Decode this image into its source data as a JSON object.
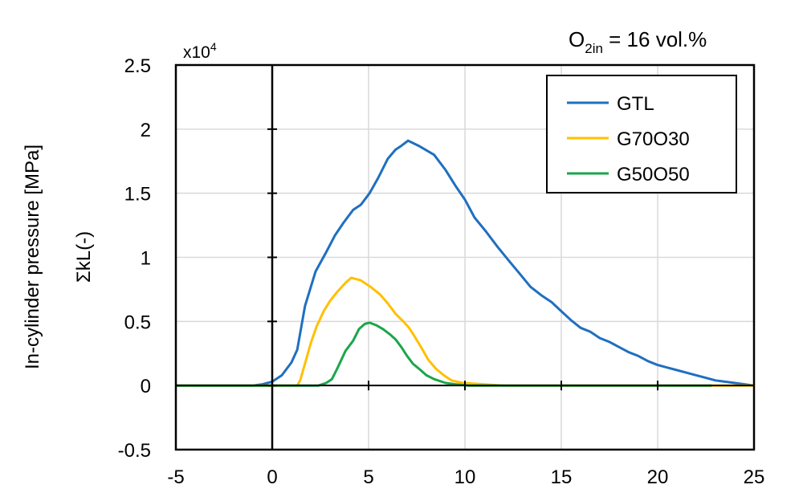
{
  "chart_data": {
    "type": "line",
    "title": "",
    "annotation": {
      "main": "O",
      "sub": "2in",
      "rest": " = 16 vol.%"
    },
    "multiplier_label": {
      "base": "x10",
      "exp": "4"
    },
    "ylabel_outer": "In-cylinder pressure [MPa]",
    "ylabel": "ΣkL(-)",
    "xlabel": "",
    "xlim": [
      -5,
      25
    ],
    "ylim": [
      -0.5,
      2.5
    ],
    "xticks": [
      "-5",
      "0",
      "5",
      "10",
      "15",
      "20",
      "25"
    ],
    "yticks": [
      "-0.5",
      "0",
      "0.5",
      "1",
      "1.5",
      "2",
      "2.5"
    ],
    "grid": true,
    "legend_position": "top-right",
    "series": [
      {
        "name": "GTL",
        "color": "#1f6fc0",
        "points": [
          [
            -5,
            0
          ],
          [
            -1,
            0
          ],
          [
            -0.5,
            0.01
          ],
          [
            0,
            0.03
          ],
          [
            0.5,
            0.08
          ],
          [
            1,
            0.18
          ],
          [
            1.3,
            0.28
          ],
          [
            1.7,
            0.62
          ],
          [
            2.25,
            0.89
          ],
          [
            2.8,
            1.04
          ],
          [
            3.25,
            1.17
          ],
          [
            3.7,
            1.27
          ],
          [
            4.2,
            1.37
          ],
          [
            4.6,
            1.41
          ],
          [
            5.05,
            1.5
          ],
          [
            5.5,
            1.62
          ],
          [
            6,
            1.77
          ],
          [
            6.4,
            1.84
          ],
          [
            6.7,
            1.87
          ],
          [
            7.05,
            1.91
          ],
          [
            7.6,
            1.87
          ],
          [
            8.4,
            1.8
          ],
          [
            9,
            1.68
          ],
          [
            9.5,
            1.56
          ],
          [
            10,
            1.45
          ],
          [
            10.5,
            1.31
          ],
          [
            11.1,
            1.2
          ],
          [
            11.7,
            1.08
          ],
          [
            12.3,
            0.97
          ],
          [
            12.8,
            0.88
          ],
          [
            13.4,
            0.77
          ],
          [
            14,
            0.7
          ],
          [
            14.5,
            0.65
          ],
          [
            15,
            0.58
          ],
          [
            15.5,
            0.51
          ],
          [
            16,
            0.45
          ],
          [
            16.5,
            0.42
          ],
          [
            17,
            0.37
          ],
          [
            17.5,
            0.34
          ],
          [
            18,
            0.3
          ],
          [
            18.5,
            0.26
          ],
          [
            19,
            0.23
          ],
          [
            19.5,
            0.19
          ],
          [
            20,
            0.16
          ],
          [
            20.5,
            0.14
          ],
          [
            21,
            0.12
          ],
          [
            21.5,
            0.1
          ],
          [
            22,
            0.08
          ],
          [
            22.5,
            0.06
          ],
          [
            23,
            0.04
          ],
          [
            23.5,
            0.03
          ],
          [
            24,
            0.02
          ],
          [
            24.5,
            0.01
          ],
          [
            25,
            0
          ]
        ]
      },
      {
        "name": "G70O30",
        "color": "#ffc000",
        "points": [
          [
            -5,
            0
          ],
          [
            1.3,
            0
          ],
          [
            1.45,
            0.04
          ],
          [
            1.7,
            0.17
          ],
          [
            2,
            0.33
          ],
          [
            2.3,
            0.46
          ],
          [
            2.67,
            0.58
          ],
          [
            3,
            0.66
          ],
          [
            3.37,
            0.73
          ],
          [
            3.8,
            0.8
          ],
          [
            4.1,
            0.84
          ],
          [
            4.6,
            0.82
          ],
          [
            5.1,
            0.77
          ],
          [
            5.6,
            0.71
          ],
          [
            6,
            0.64
          ],
          [
            6.4,
            0.56
          ],
          [
            6.8,
            0.5
          ],
          [
            7.1,
            0.45
          ],
          [
            7.4,
            0.38
          ],
          [
            7.8,
            0.28
          ],
          [
            8.1,
            0.2
          ],
          [
            8.5,
            0.13
          ],
          [
            8.9,
            0.08
          ],
          [
            9.3,
            0.04
          ],
          [
            9.9,
            0.02
          ],
          [
            11,
            0.01
          ],
          [
            12,
            0
          ],
          [
            25,
            0
          ]
        ]
      },
      {
        "name": "G50O50",
        "color": "#1aa64a",
        "points": [
          [
            -5,
            0
          ],
          [
            2.4,
            0
          ],
          [
            2.8,
            0.02
          ],
          [
            3.1,
            0.05
          ],
          [
            3.4,
            0.14
          ],
          [
            3.8,
            0.27
          ],
          [
            4.2,
            0.35
          ],
          [
            4.5,
            0.44
          ],
          [
            4.8,
            0.48
          ],
          [
            5.05,
            0.49
          ],
          [
            5.4,
            0.47
          ],
          [
            5.75,
            0.44
          ],
          [
            6.1,
            0.4
          ],
          [
            6.4,
            0.36
          ],
          [
            6.7,
            0.3
          ],
          [
            7,
            0.23
          ],
          [
            7.3,
            0.17
          ],
          [
            7.7,
            0.12
          ],
          [
            8,
            0.08
          ],
          [
            8.4,
            0.05
          ],
          [
            9,
            0.02
          ],
          [
            9.5,
            0.01
          ],
          [
            10.2,
            0
          ],
          [
            22.8,
            0
          ]
        ]
      }
    ]
  }
}
